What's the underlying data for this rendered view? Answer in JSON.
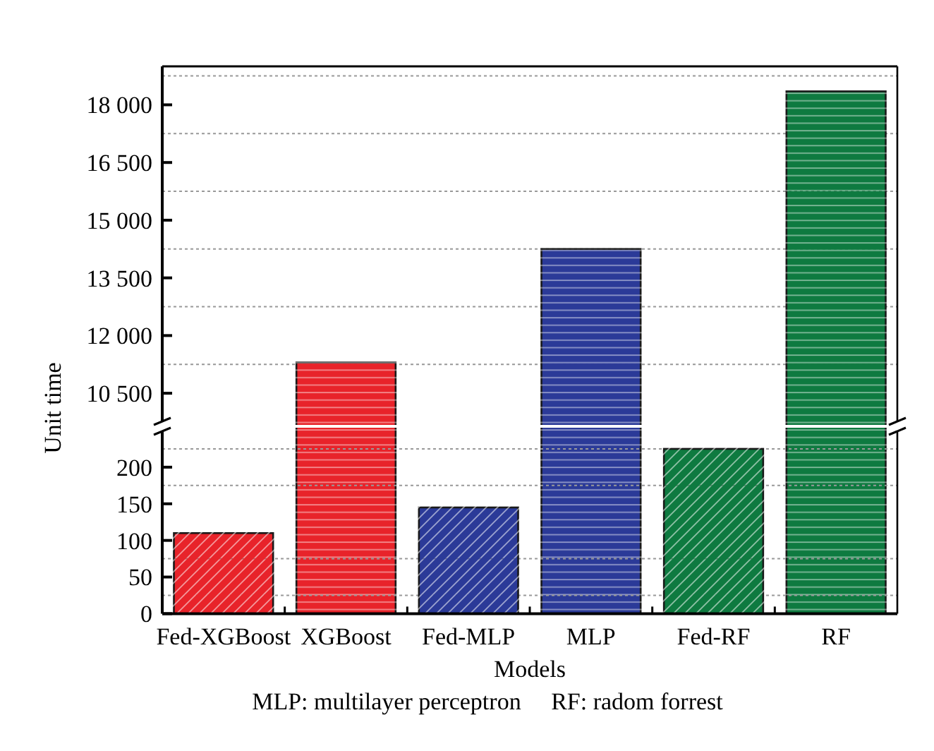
{
  "chart_data": [
    {
      "type": "bar",
      "ylabel": "Unit time",
      "categories": [
        null,
        null,
        null,
        null,
        null,
        null
      ],
      "series": [
        {
          "values": [
            null,
            11300,
            null,
            14250,
            null,
            18350
          ],
          "colors": [
            null,
            "#e8232a",
            null,
            "#2b3a98",
            null,
            "#0e7a40"
          ]
        }
      ],
      "ylim": [
        9750,
        19000
      ],
      "yticks": [
        {
          "value": 10500,
          "label": "10 500"
        },
        {
          "value": 12000,
          "label": "12 000"
        },
        {
          "value": 13500,
          "label": "13 500"
        },
        {
          "value": 15000,
          "label": "15 000"
        },
        {
          "value": 16500,
          "label": "16 500"
        },
        {
          "value": 18000,
          "label": "18 000"
        },
        {
          "value": 11250,
          "label": null
        },
        {
          "value": 12750,
          "label": null
        },
        {
          "value": 14250,
          "label": null
        },
        {
          "value": 15750,
          "label": null
        },
        {
          "value": 17250,
          "label": null
        },
        {
          "value": 18750,
          "label": null
        }
      ],
      "grid": "y"
    },
    {
      "type": "bar",
      "xlabel": "Models",
      "categories": [
        "Fed-XGBoost",
        "XGBoost",
        "Fed-MLP",
        "MLP",
        "Fed-RF",
        "RF"
      ],
      "series": [
        {
          "values": [
            110,
            null,
            145,
            null,
            225,
            null
          ],
          "colors": [
            "#e8232a",
            null,
            "#2b3a98",
            null,
            "#0e7a40",
            null
          ]
        }
      ],
      "ylim": [
        0,
        250
      ],
      "yticks": [
        0,
        50,
        100,
        150,
        200,
        {
          "value": 25,
          "label": null
        },
        {
          "value": 75,
          "label": null
        },
        {
          "value": 175,
          "label": null
        },
        {
          "value": 225,
          "label": null
        }
      ],
      "grid": "y",
      "annotations": [
        "MLP: multilayer perceptron     RF: radom forrest"
      ]
    }
  ]
}
